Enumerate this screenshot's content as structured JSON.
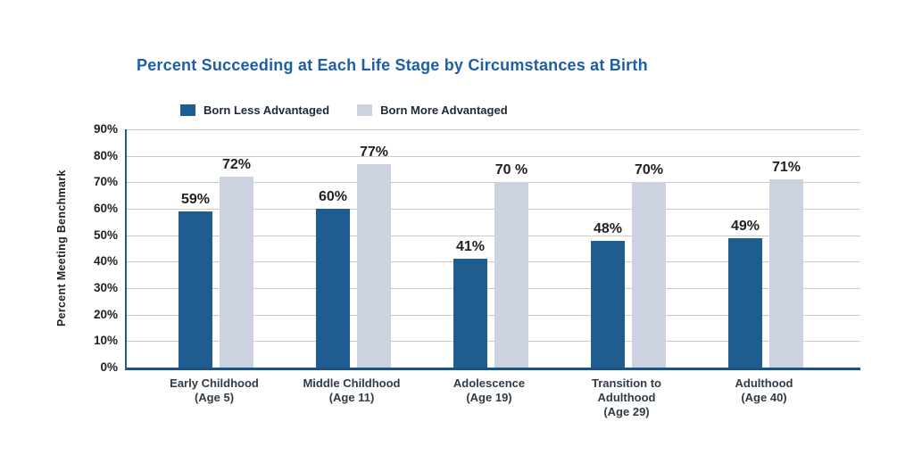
{
  "chart_data": {
    "type": "bar",
    "title": "Percent Succeeding at Each Life Stage by Circumstances at Birth",
    "xlabel": "",
    "ylabel": "Percent Meeting Benchmark",
    "ylim": [
      0,
      90
    ],
    "ytick_step": 10,
    "ytick_labels": [
      "90%",
      "80%",
      "70%",
      "60%",
      "50%",
      "40%",
      "30%",
      "20%",
      "10%",
      "0%"
    ],
    "grid": "horizontal",
    "legend_position": "top-left",
    "categories": [
      "Early Childhood (Age 5)",
      "Middle Childhood (Age 11)",
      "Adolescence (Age 19)",
      "Transition to Adulthood (Age 29)",
      "Adulthood (Age 40)"
    ],
    "category_label_lines": [
      [
        "Early Childhood",
        "(Age 5)"
      ],
      [
        "Middle Childhood",
        "(Age 11)"
      ],
      [
        "Adolescence",
        "(Age 19)"
      ],
      [
        "Transition to",
        "Adulthood",
        "(Age 29)"
      ],
      [
        "Adulthood",
        "(Age 40)"
      ]
    ],
    "series": [
      {
        "name": "Born Less Advantaged",
        "color": "#1F5C8F",
        "values": [
          59,
          60,
          41,
          48,
          49
        ],
        "value_labels": [
          "59%",
          "60%",
          "41%",
          "48%",
          "49%"
        ]
      },
      {
        "name": "Born More Advantaged",
        "color": "#CCD2E0",
        "values": [
          72,
          77,
          70,
          70,
          71
        ],
        "value_labels": [
          "72%",
          "77%",
          "70 %",
          "70%",
          "71%"
        ]
      }
    ]
  },
  "colors": {
    "title": "#1D5FA7",
    "axis": "#1F5C8F",
    "gridline": "#CBCBCB",
    "tick_text": "#231F20",
    "xlabel_text": "#2F3B47",
    "background": "#FFFFFF"
  }
}
